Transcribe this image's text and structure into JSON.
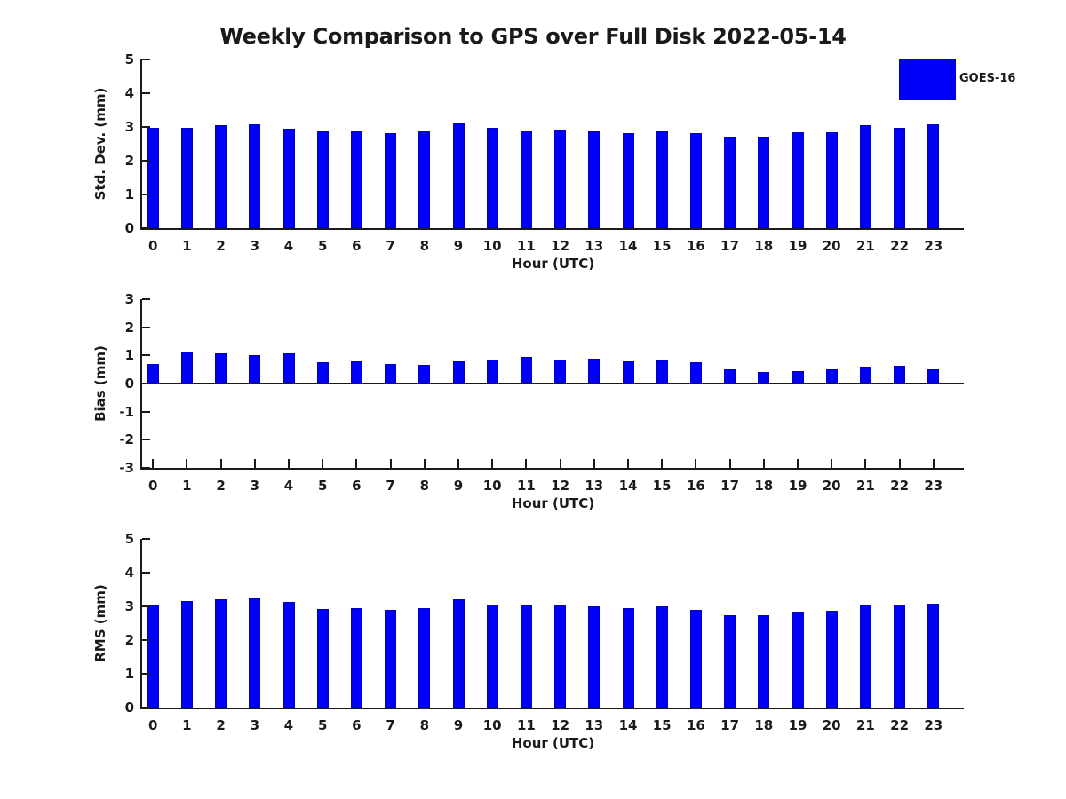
{
  "title": "Weekly Comparison to GPS over Full Disk 2022-05-14",
  "legend": {
    "label": "GOES-16",
    "position": "figure-top-right"
  },
  "colors": {
    "bar_fill": "#0000fa",
    "bar_edge": "#0000c0",
    "axis": "#1a1a1a",
    "text": "#1a1a1a",
    "background": "#ffffff"
  },
  "chart_data": [
    {
      "type": "bar",
      "panel": "std-dev",
      "ylabel": "Std. Dev. (mm)",
      "xlabel": "Hour (UTC)",
      "ylim": [
        0,
        5
      ],
      "yticks": [
        0,
        1,
        2,
        3,
        4,
        5
      ],
      "grid": false,
      "categories": [
        0,
        1,
        2,
        3,
        4,
        5,
        6,
        7,
        8,
        9,
        10,
        11,
        12,
        13,
        14,
        15,
        16,
        17,
        18,
        19,
        20,
        21,
        22,
        23
      ],
      "series": [
        {
          "name": "GOES-16",
          "values": [
            2.98,
            2.98,
            3.04,
            3.08,
            2.96,
            2.86,
            2.88,
            2.82,
            2.9,
            3.11,
            2.97,
            2.9,
            2.93,
            2.86,
            2.81,
            2.88,
            2.81,
            2.72,
            2.7,
            2.83,
            2.84,
            3.04,
            2.98,
            3.08
          ]
        }
      ]
    },
    {
      "type": "bar",
      "panel": "bias",
      "ylabel": "Bias (mm)",
      "xlabel": "Hour (UTC)",
      "ylim": [
        -3,
        3
      ],
      "yticks": [
        -3,
        -2,
        -1,
        0,
        1,
        2,
        3
      ],
      "grid": false,
      "categories": [
        0,
        1,
        2,
        3,
        4,
        5,
        6,
        7,
        8,
        9,
        10,
        11,
        12,
        13,
        14,
        15,
        16,
        17,
        18,
        19,
        20,
        21,
        22,
        23
      ],
      "series": [
        {
          "name": "GOES-16",
          "values": [
            0.7,
            1.13,
            1.06,
            1.01,
            1.07,
            0.76,
            0.79,
            0.71,
            0.65,
            0.79,
            0.86,
            0.94,
            0.84,
            0.88,
            0.79,
            0.82,
            0.76,
            0.51,
            0.41,
            0.43,
            0.49,
            0.59,
            0.64,
            0.5
          ]
        }
      ]
    },
    {
      "type": "bar",
      "panel": "rms",
      "ylabel": "RMS (mm)",
      "xlabel": "Hour (UTC)",
      "ylim": [
        0,
        5
      ],
      "yticks": [
        0,
        1,
        2,
        3,
        4,
        5
      ],
      "grid": false,
      "categories": [
        0,
        1,
        2,
        3,
        4,
        5,
        6,
        7,
        8,
        9,
        10,
        11,
        12,
        13,
        14,
        15,
        16,
        17,
        18,
        19,
        20,
        21,
        22,
        23
      ],
      "series": [
        {
          "name": "GOES-16",
          "values": [
            3.04,
            3.17,
            3.2,
            3.23,
            3.14,
            2.93,
            2.96,
            2.89,
            2.96,
            3.2,
            3.06,
            3.04,
            3.05,
            3.01,
            2.94,
            2.99,
            2.89,
            2.73,
            2.73,
            2.85,
            2.86,
            3.06,
            3.04,
            3.09
          ]
        }
      ]
    }
  ]
}
